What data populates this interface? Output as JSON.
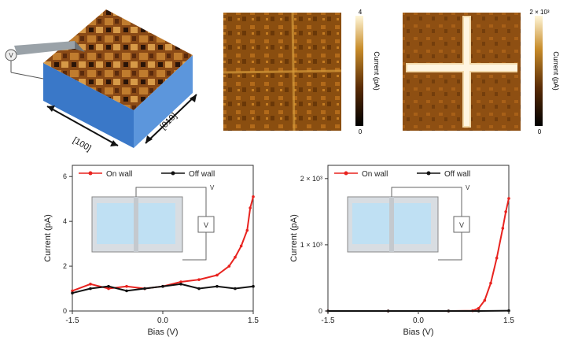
{
  "figure": {
    "schematic": {
      "label_voltage": "V",
      "label_dir_a": "[100]",
      "label_dir_b": "[010]"
    },
    "map_a": {
      "colorbar_label": "Current (pA)",
      "colorbar_max": "4",
      "colorbar_min": "0"
    },
    "map_b": {
      "colorbar_label": "Current (pA)",
      "colorbar_max": "2 × 10³",
      "colorbar_min": "0"
    }
  },
  "chart_data": [
    {
      "type": "line",
      "xlabel": "Bias (V)",
      "ylabel": "Current (pA)",
      "xlim": [
        -1.5,
        1.5
      ],
      "ylim": [
        0,
        6.5
      ],
      "xticks": [
        "-1.5",
        "0.0",
        "1.5"
      ],
      "yticks": [
        "0",
        "2",
        "4",
        "6"
      ],
      "legend": [
        "On wall",
        "Off wall"
      ],
      "inset_label_top": "V",
      "inset_label_right": "V",
      "series": [
        {
          "name": "On wall",
          "color": "#e8231f",
          "x": [
            -1.5,
            -1.2,
            -0.9,
            -0.6,
            -0.3,
            0.0,
            0.3,
            0.6,
            0.9,
            1.1,
            1.2,
            1.3,
            1.4,
            1.45,
            1.5
          ],
          "values": [
            0.9,
            1.2,
            1.0,
            1.1,
            1.0,
            1.1,
            1.3,
            1.4,
            1.6,
            2.0,
            2.4,
            2.9,
            3.6,
            4.6,
            5.1
          ]
        },
        {
          "name": "Off wall",
          "color": "#111111",
          "x": [
            -1.5,
            -1.2,
            -0.9,
            -0.6,
            -0.3,
            0.0,
            0.3,
            0.6,
            0.9,
            1.2,
            1.5
          ],
          "values": [
            0.8,
            1.0,
            1.1,
            0.9,
            1.0,
            1.1,
            1.2,
            1.0,
            1.1,
            1.0,
            1.1
          ]
        }
      ]
    },
    {
      "type": "line",
      "xlabel": "Bias (V)",
      "ylabel": "Current (pA)",
      "xlim": [
        -1.5,
        1.5
      ],
      "ylim": [
        0,
        2200
      ],
      "xticks": [
        "-1.5",
        "0.0",
        "1.5"
      ],
      "yticks": [
        "0",
        "1 × 10³",
        "2 × 10³"
      ],
      "legend": [
        "On wall",
        "Off wall"
      ],
      "inset_label_top": "V",
      "inset_label_right": "V",
      "series": [
        {
          "name": "On wall",
          "color": "#e8231f",
          "x": [
            -1.5,
            -0.5,
            0.5,
            0.9,
            1.0,
            1.1,
            1.2,
            1.3,
            1.4,
            1.45,
            1.5
          ],
          "values": [
            0,
            0,
            0,
            5,
            40,
            160,
            420,
            800,
            1250,
            1500,
            1700
          ]
        },
        {
          "name": "Off wall",
          "color": "#111111",
          "x": [
            -1.5,
            -0.5,
            0.5,
            1.0,
            1.5
          ],
          "values": [
            0,
            0,
            0,
            0,
            5
          ]
        }
      ]
    }
  ]
}
